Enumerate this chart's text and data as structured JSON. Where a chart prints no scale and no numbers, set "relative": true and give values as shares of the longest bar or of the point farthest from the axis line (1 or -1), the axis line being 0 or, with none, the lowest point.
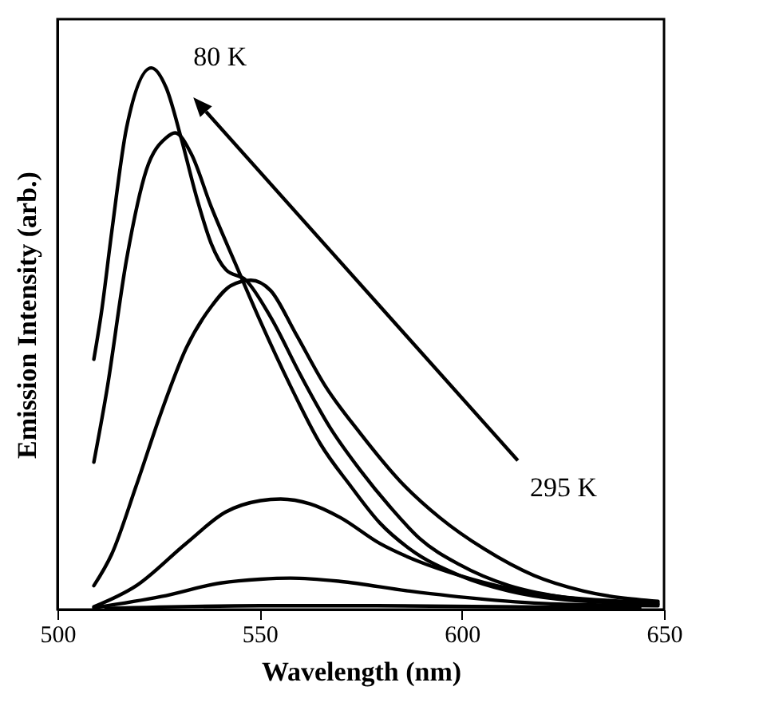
{
  "chart_data": {
    "type": "line",
    "relative": true,
    "xlabel": "Wavelength (nm)",
    "ylabel": "Emission Intensity (arb.)",
    "xlim": [
      500,
      650
    ],
    "xticks": [
      500,
      550,
      600,
      650
    ],
    "annotations": [
      "80 K",
      "295 K"
    ],
    "series": [
      {
        "color": "#000000",
        "x": [
          509,
          510.9,
          513.4,
          517.1,
          523.2,
          526.9,
          530.6,
          534.3,
          538,
          541.7,
          546.6,
          552.7,
          560.1,
          567.4,
          574.8,
          582.2,
          589.6,
          599.4,
          611.7,
          624,
          636.3,
          648.5
        ],
        "values": [
          0.462,
          0.55,
          0.696,
          0.89,
          1.0,
          0.963,
          0.87,
          0.764,
          0.676,
          0.627,
          0.608,
          0.54,
          0.433,
          0.336,
          0.258,
          0.19,
          0.131,
          0.083,
          0.044,
          0.024,
          0.015,
          0.01
        ]
      },
      {
        "color": "#000000",
        "x": [
          509,
          512.2,
          517.1,
          522,
          526.9,
          529.1,
          533.1,
          538,
          544.1,
          550.3,
          557.6,
          565,
          572.4,
          579.7,
          587.1,
          599.4,
          611.7,
          624,
          648.5
        ],
        "values": [
          0.272,
          0.404,
          0.647,
          0.812,
          0.871,
          0.88,
          0.841,
          0.744,
          0.637,
          0.53,
          0.413,
          0.306,
          0.229,
          0.16,
          0.112,
          0.063,
          0.034,
          0.019,
          0.01
        ]
      },
      {
        "color": "#000000",
        "x": [
          509,
          513.4,
          519.5,
          525.7,
          531.8,
          538,
          542.9,
          547.8,
          552.7,
          558.8,
          566.2,
          574.8,
          584.6,
          594.5,
          605.5,
          617.8,
          630.1,
          648.5
        ],
        "values": [
          0.044,
          0.102,
          0.229,
          0.365,
          0.482,
          0.559,
          0.598,
          0.608,
          0.589,
          0.511,
          0.413,
          0.326,
          0.238,
          0.17,
          0.112,
          0.063,
          0.034,
          0.015
        ]
      },
      {
        "color": "#000000",
        "x": [
          509,
          519.5,
          531.8,
          541.6,
          550.2,
          555.2,
          562.5,
          569.9,
          579.7,
          589.6,
          599.4,
          611.7,
          624,
          648.5
        ],
        "values": [
          0.005,
          0.044,
          0.122,
          0.18,
          0.201,
          0.204,
          0.195,
          0.17,
          0.122,
          0.088,
          0.063,
          0.039,
          0.024,
          0.013
        ]
      },
      {
        "color": "#000000",
        "x": [
          509,
          525.7,
          540.4,
          550.2,
          557.6,
          569.9,
          587.1,
          605.5,
          624,
          648.5
        ],
        "values": [
          0.003,
          0.024,
          0.049,
          0.056,
          0.058,
          0.052,
          0.034,
          0.019,
          0.01,
          0.007
        ]
      },
      {
        "color": "#000000",
        "x": [
          512,
          550.2,
          574.8,
          644
        ],
        "values": [
          0.002,
          0.007,
          0.007,
          0.003
        ]
      }
    ]
  }
}
